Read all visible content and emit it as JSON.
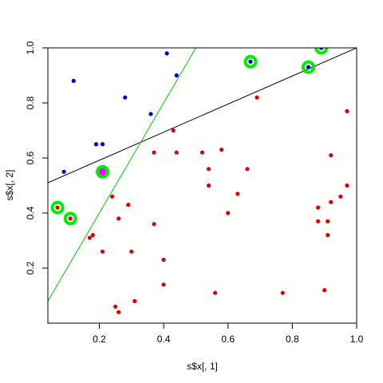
{
  "chart_data": {
    "type": "scatter",
    "title": "",
    "xlabel": "s$x[, 1]",
    "ylabel": "s$x[, 2]",
    "xlim": [
      0.04,
      1.0
    ],
    "ylim": [
      0.0,
      1.0
    ],
    "xticks": [
      0.2,
      0.4,
      0.6,
      0.8,
      1.0
    ],
    "yticks": [
      0.2,
      0.4,
      0.6,
      0.8,
      1.0
    ],
    "xtick_labels": [
      "0.2",
      "0.4",
      "0.6",
      "0.8",
      "1.0"
    ],
    "ytick_labels": [
      "0.2",
      "0.4",
      "0.6",
      "0.8",
      "1.0"
    ],
    "grid": false,
    "legend": "none",
    "colors": {
      "blue": "#0000cc",
      "red": "#dd0000",
      "green_ring": "#00ee00",
      "magenta": "#ff00ff",
      "black_line": "#000000",
      "green_line": "#00cc00"
    },
    "series": [
      {
        "color": "blue",
        "points": [
          [
            0.12,
            0.88
          ],
          [
            0.28,
            0.82
          ],
          [
            0.41,
            0.98
          ],
          [
            0.44,
            0.9
          ],
          [
            0.36,
            0.76
          ],
          [
            0.19,
            0.65
          ],
          [
            0.21,
            0.65
          ],
          [
            0.09,
            0.55
          ],
          [
            0.67,
            0.95
          ],
          [
            0.85,
            0.93
          ],
          [
            0.89,
            1.0
          ]
        ]
      },
      {
        "color": "red",
        "points": [
          [
            0.07,
            0.42
          ],
          [
            0.11,
            0.38
          ],
          [
            0.24,
            0.46
          ],
          [
            0.26,
            0.38
          ],
          [
            0.29,
            0.43
          ],
          [
            0.17,
            0.31
          ],
          [
            0.18,
            0.32
          ],
          [
            0.21,
            0.26
          ],
          [
            0.3,
            0.26
          ],
          [
            0.37,
            0.36
          ],
          [
            0.37,
            0.62
          ],
          [
            0.43,
            0.7
          ],
          [
            0.44,
            0.62
          ],
          [
            0.52,
            0.62
          ],
          [
            0.54,
            0.56
          ],
          [
            0.54,
            0.5
          ],
          [
            0.58,
            0.63
          ],
          [
            0.6,
            0.4
          ],
          [
            0.63,
            0.47
          ],
          [
            0.66,
            0.56
          ],
          [
            0.69,
            0.82
          ],
          [
            0.4,
            0.23
          ],
          [
            0.4,
            0.14
          ],
          [
            0.31,
            0.08
          ],
          [
            0.25,
            0.06
          ],
          [
            0.26,
            0.04
          ],
          [
            0.56,
            0.11
          ],
          [
            0.77,
            0.11
          ],
          [
            0.88,
            0.42
          ],
          [
            0.88,
            0.37
          ],
          [
            0.91,
            0.37
          ],
          [
            0.91,
            0.32
          ],
          [
            0.92,
            0.44
          ],
          [
            0.92,
            0.61
          ],
          [
            0.95,
            0.46
          ],
          [
            0.97,
            0.5
          ],
          [
            0.97,
            0.77
          ],
          [
            0.9,
            0.12
          ]
        ]
      }
    ],
    "highlighted": [
      {
        "x": 0.07,
        "y": 0.42,
        "fill": "red"
      },
      {
        "x": 0.11,
        "y": 0.38,
        "fill": "red"
      },
      {
        "x": 0.21,
        "y": 0.55,
        "fill": "magenta"
      },
      {
        "x": 0.67,
        "y": 0.95,
        "fill": "blue"
      },
      {
        "x": 0.85,
        "y": 0.93,
        "fill": "blue"
      },
      {
        "x": 0.89,
        "y": 1.0,
        "fill": "blue"
      }
    ],
    "lines": [
      {
        "color": "black_line",
        "from": [
          0.04,
          0.51
        ],
        "to": [
          1.0,
          1.0
        ]
      },
      {
        "color": "green_line",
        "from": [
          0.04,
          0.08
        ],
        "to": [
          0.52,
          1.04
        ]
      }
    ]
  }
}
